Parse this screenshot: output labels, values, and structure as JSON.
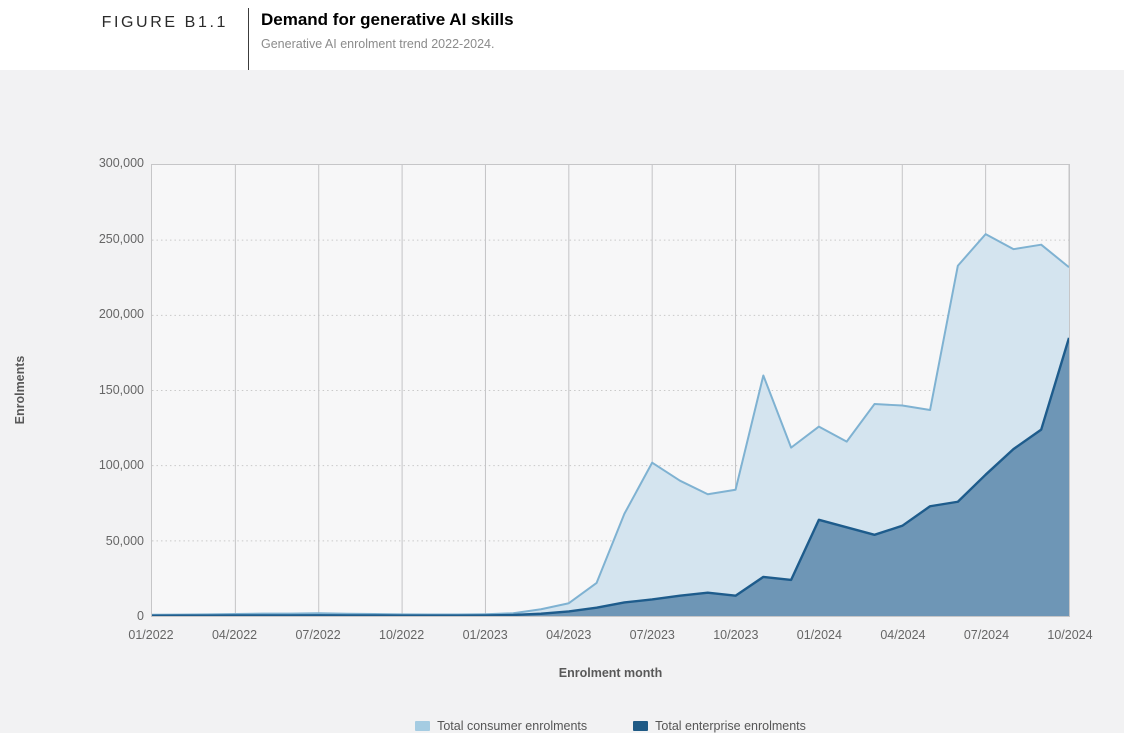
{
  "figure": {
    "label": "FIGURE B1.1",
    "title": "Demand for generative AI skills",
    "subtitle": "Generative AI enrolment trend 2022-2024."
  },
  "chart_data": {
    "type": "area",
    "title": "Demand for generative AI skills",
    "xlabel": "Enrolment month",
    "ylabel": "Enrolments",
    "ylim": [
      0,
      300000
    ],
    "grid": {
      "vertical": "solid",
      "horizontal": "dotted"
    },
    "legend_position": "bottom",
    "x": [
      "01/2022",
      "02/2022",
      "03/2022",
      "04/2022",
      "05/2022",
      "06/2022",
      "07/2022",
      "08/2022",
      "09/2022",
      "10/2022",
      "11/2022",
      "12/2022",
      "01/2023",
      "02/2023",
      "03/2023",
      "04/2023",
      "05/2023",
      "06/2023",
      "07/2023",
      "08/2023",
      "09/2023",
      "10/2023",
      "11/2023",
      "12/2023",
      "01/2024",
      "02/2024",
      "03/2024",
      "04/2024",
      "05/2024",
      "06/2024",
      "07/2024",
      "08/2024",
      "09/2024",
      "10/2024"
    ],
    "x_tick_labels": [
      "01/2022",
      "04/2022",
      "07/2022",
      "10/2022",
      "01/2023",
      "04/2023",
      "07/2023",
      "10/2023",
      "01/2024",
      "04/2024",
      "07/2024",
      "10/2024"
    ],
    "y_ticks": [
      0,
      50000,
      100000,
      150000,
      200000,
      250000,
      300000
    ],
    "y_tick_labels": [
      "0",
      "50,000",
      "100,000",
      "150,000",
      "200,000",
      "250,000",
      "300,000"
    ],
    "series": [
      {
        "name": "Total consumer enrolments",
        "legend_color": "#a5cce2",
        "fill": "#d4e4ef",
        "stroke": "#7fb2d2",
        "values": [
          800,
          900,
          1100,
          1300,
          1600,
          1600,
          1800,
          1500,
          1300,
          1100,
          1000,
          1000,
          1200,
          1800,
          4500,
          8500,
          22000,
          68000,
          102000,
          90000,
          81000,
          84000,
          160000,
          112000,
          126000,
          116000,
          141000,
          140000,
          137000,
          233000,
          254000,
          244000,
          247000,
          232000
        ]
      },
      {
        "name": "Total enterprise enrolments",
        "legend_color": "#1f5a85",
        "fill": "rgba(25, 86, 134, 0.55)",
        "stroke": "#1e5c8c",
        "values": [
          200,
          250,
          300,
          350,
          400,
          400,
          450,
          400,
          350,
          300,
          300,
          300,
          400,
          700,
          1500,
          3000,
          5500,
          9000,
          11000,
          13500,
          15500,
          13500,
          26000,
          24000,
          64000,
          59000,
          54000,
          60000,
          73000,
          76000,
          94000,
          111000,
          124000,
          185000
        ]
      }
    ]
  },
  "legend": {
    "items": [
      {
        "label": "Total consumer enrolments",
        "color": "#a5cce2"
      },
      {
        "label": "Total enterprise enrolments",
        "color": "#1f5a85"
      }
    ]
  }
}
